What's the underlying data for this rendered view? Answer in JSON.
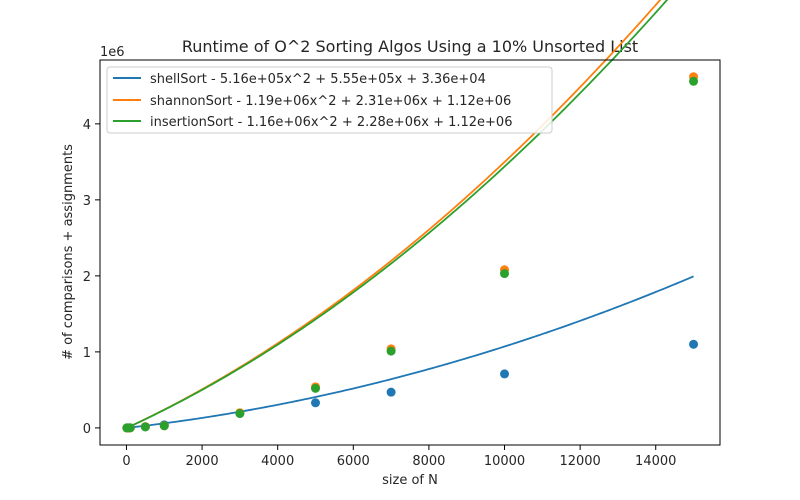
{
  "chart_data": {
    "type": "line",
    "title": "Runtime of O^2 Sorting Algos Using a 10% Unsorted List",
    "xlabel": "size of N",
    "ylabel": "# of comparisons + assignments",
    "y_offset_label": "1e6",
    "xlim": [
      -700,
      15700
    ],
    "ylim": [
      -0.225,
      4.84
    ],
    "xticks": [
      0,
      2000,
      4000,
      6000,
      8000,
      10000,
      12000,
      14000
    ],
    "xtick_labels": [
      "0",
      "2000",
      "4000",
      "6000",
      "8000",
      "10000",
      "12000",
      "14000"
    ],
    "yticks": [
      0,
      1,
      2,
      3,
      4
    ],
    "ytick_labels": [
      "0",
      "1",
      "2",
      "3",
      "4"
    ],
    "grid": false,
    "legend_position": "top-left",
    "x": [
      10,
      50,
      100,
      500,
      1000,
      3000,
      5000,
      7000,
      10000,
      15000
    ],
    "series": [
      {
        "name": "shellSort - 5.16e+05x^2 +  5.55e+05x +  3.36e+04",
        "color": "#1f77b4",
        "points": [
          0.0002,
          0.001,
          0.0023,
          0.015,
          0.04,
          0.19,
          0.33,
          0.47,
          0.71,
          1.1
        ],
        "fit": [
          0.0336,
          0.555,
          0.516
        ]
      },
      {
        "name": "shannonSort - 1.19e+06x^2 +  2.31e+06x +  1.12e+06",
        "color": "#ff7f0e",
        "points": [
          0.0001,
          0.0004,
          0.001,
          0.017,
          0.03,
          0.2,
          0.54,
          1.04,
          2.08,
          4.62
        ],
        "fit": [
          1.12,
          2.31,
          1.19
        ]
      },
      {
        "name": "insertionSort - 1.16e+06x^2 +  2.28e+06x +  1.12e+06",
        "color": "#2ca02c",
        "points": [
          0.0001,
          0.0004,
          0.001,
          0.014,
          0.027,
          0.19,
          0.52,
          1.01,
          2.03,
          4.56
        ],
        "fit": [
          1.12,
          2.28,
          1.16
        ]
      }
    ]
  }
}
